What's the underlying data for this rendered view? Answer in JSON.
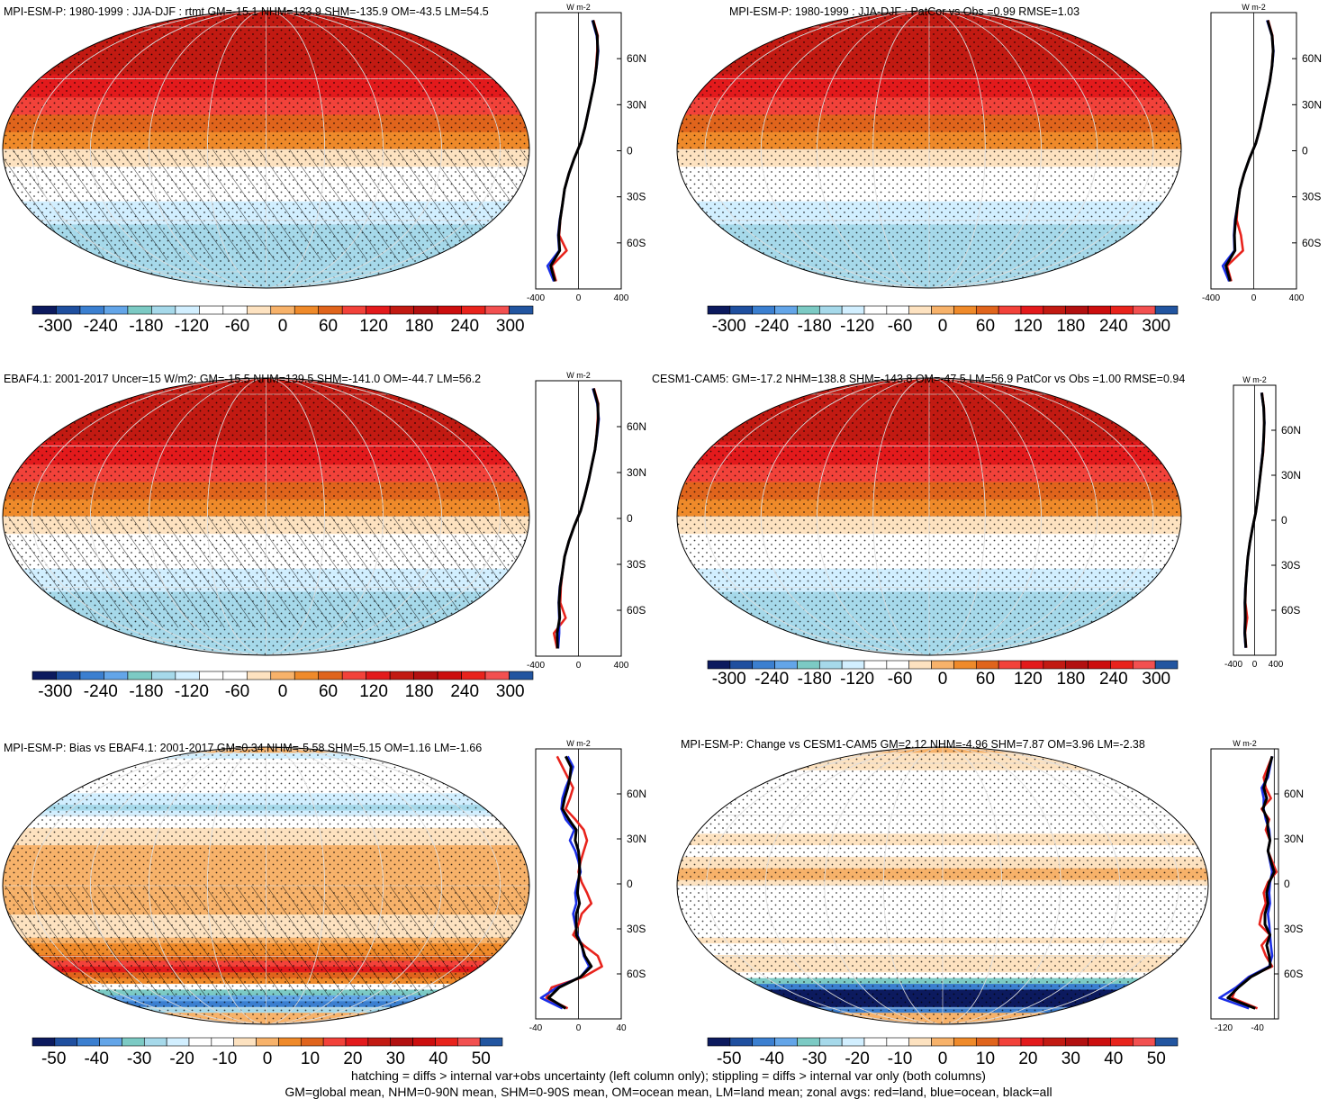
{
  "colors": {
    "abs_scale": [
      "#0c1a5e",
      "#1f4f9f",
      "#3b7fd0",
      "#63a5e8",
      "#7ccac4",
      "#a6d9ea",
      "#d2efff",
      "#ffffff",
      "#ffffff",
      "#fde2c0",
      "#f7b26a",
      "#ef8a2a",
      "#e0641c",
      "#f2423a",
      "#e31a1c",
      "#c21a12",
      "#b21010",
      "#cc0e0e",
      "#e8231c",
      "#f25050",
      "#2255a0"
    ],
    "diff_scale": [
      "#0c1a5e",
      "#1f4f9f",
      "#3b7fd0",
      "#63a5e8",
      "#7ccac4",
      "#a6d9ea",
      "#d2efff",
      "#ffffff",
      "#ffffff",
      "#fde2c0",
      "#f7b26a",
      "#ef8a2a",
      "#e0641c",
      "#f2423a",
      "#e31a1c",
      "#c21a12",
      "#b21010",
      "#cc0e0e",
      "#e8231c",
      "#f25050",
      "#2255a0"
    ],
    "land": "#e8231c",
    "ocean": "#1a2ee8",
    "all": "#000000"
  },
  "chart_data": [
    {
      "type": "heatmap",
      "title": "MPI-ESM-P: 1980-1999 : JJA-DJF : rtmt GM=-15.1 NHM=133.9 SHM=-135.9 OM=-43.5 LM=54.5",
      "field": "absolute",
      "hatching": true,
      "colorbar": {
        "ticks": [
          "-300",
          "-240",
          "-180",
          "-120",
          "-60",
          "0",
          "60",
          "120",
          "180",
          "240",
          "300"
        ],
        "range": [
          -330,
          330
        ]
      },
      "zonal": {
        "unit": "W m-2",
        "xlim": [
          -400,
          400
        ],
        "xticks": [
          "-400",
          "0",
          "400"
        ],
        "yticks": [
          "60N",
          "30N",
          "0",
          "30S",
          "60S"
        ],
        "lat": [
          85,
          75,
          65,
          55,
          45,
          35,
          25,
          15,
          5,
          -5,
          -15,
          -25,
          -35,
          -45,
          -55,
          -65,
          -75,
          -85
        ],
        "land": [
          140,
          180,
          175,
          165,
          150,
          120,
          90,
          60,
          20,
          -40,
          -90,
          -130,
          -150,
          -170,
          -180,
          -110,
          -250,
          -210
        ],
        "ocean": [
          130,
          170,
          185,
          170,
          150,
          120,
          90,
          60,
          20,
          -40,
          -90,
          -130,
          -150,
          -175,
          -190,
          -180,
          -290,
          -230
        ],
        "all": [
          135,
          175,
          180,
          168,
          150,
          120,
          90,
          60,
          20,
          -40,
          -90,
          -130,
          -150,
          -172,
          -185,
          -175,
          -260,
          -220
        ]
      }
    },
    {
      "type": "heatmap",
      "title": "MPI-ESM-P: 1980-1999 : JJA-DJF : PatCor vs Obs =0.99 RMSE=1.03",
      "field": "absolute",
      "hatching": false,
      "colorbar": {
        "ticks": [
          "-300",
          "-240",
          "-180",
          "-120",
          "-60",
          "0",
          "60",
          "120",
          "180",
          "240",
          "300"
        ],
        "range": [
          -330,
          330
        ]
      },
      "zonal": {
        "unit": "W m-2",
        "xlim": [
          -400,
          400
        ],
        "xticks": [
          "-400",
          "0",
          "400"
        ],
        "yticks": [
          "60N",
          "30N",
          "0",
          "30S",
          "60S"
        ],
        "lat": [
          85,
          75,
          65,
          55,
          45,
          35,
          25,
          15,
          5,
          -5,
          -15,
          -25,
          -35,
          -45,
          -55,
          -65,
          -75,
          -85
        ],
        "land": [
          135,
          175,
          180,
          170,
          150,
          120,
          90,
          60,
          20,
          -40,
          -90,
          -130,
          -150,
          -160,
          -120,
          -100,
          -250,
          -210
        ],
        "ocean": [
          125,
          170,
          185,
          172,
          150,
          120,
          90,
          60,
          20,
          -40,
          -90,
          -130,
          -150,
          -175,
          -185,
          -180,
          -290,
          -230
        ],
        "all": [
          130,
          172,
          182,
          171,
          150,
          120,
          90,
          60,
          20,
          -40,
          -90,
          -130,
          -150,
          -170,
          -180,
          -175,
          -260,
          -220
        ]
      }
    },
    {
      "type": "heatmap",
      "title": "EBAF4.1: 2001-2017 Uncer=15 W/m2: GM=-15.5 NHM=139.5 SHM=-141.0 OM=-44.7 LM=56.2",
      "field": "absolute",
      "hatching": true,
      "colorbar": {
        "ticks": [
          "-300",
          "-240",
          "-180",
          "-120",
          "-60",
          "0",
          "60",
          "120",
          "180",
          "240",
          "300"
        ],
        "range": [
          -330,
          330
        ]
      },
      "zonal": {
        "unit": "W m-2",
        "xlim": [
          -400,
          400
        ],
        "xticks": [
          "-400",
          "0",
          "400"
        ],
        "yticks": [
          "60N",
          "30N",
          "0",
          "30S",
          "60S"
        ],
        "lat": [
          85,
          75,
          65,
          55,
          45,
          35,
          25,
          15,
          5,
          -5,
          -15,
          -25,
          -35,
          -45,
          -55,
          -65,
          -75,
          -85
        ],
        "land": [
          145,
          185,
          180,
          170,
          155,
          125,
          95,
          60,
          20,
          -40,
          -90,
          -130,
          -150,
          -165,
          -170,
          -120,
          -230,
          -200
        ],
        "ocean": [
          135,
          175,
          190,
          175,
          155,
          125,
          95,
          60,
          20,
          -40,
          -90,
          -130,
          -150,
          -175,
          -185,
          -180,
          -180,
          -190
        ],
        "all": [
          140,
          180,
          185,
          172,
          155,
          125,
          95,
          60,
          20,
          -40,
          -90,
          -130,
          -150,
          -172,
          -182,
          -175,
          -200,
          -195
        ]
      }
    },
    {
      "type": "heatmap",
      "title": "CESM1-CAM5: GM=-17.2 NHM=138.8 SHM=-143.8 OM=-47.5 LM=56.9 PatCor vs Obs =1.00 RMSE=0.94",
      "field": "absolute",
      "hatching": false,
      "colorbar": {
        "ticks": [
          "-300",
          "-240",
          "-180",
          "-120",
          "-60",
          "0",
          "60",
          "120",
          "180",
          "240",
          "300"
        ],
        "range": [
          -330,
          330
        ]
      },
      "zonal": {
        "unit": "W m-2",
        "xlim": [
          -400,
          400
        ],
        "xticks": [
          "-400",
          "0",
          "400"
        ],
        "yticks": [
          "60N",
          "30N",
          "0",
          "30S",
          "60S"
        ],
        "lat": [
          85,
          75,
          65,
          55,
          45,
          35,
          25,
          15,
          5,
          -5,
          -15,
          -25,
          -35,
          -45,
          -55,
          -65,
          -75,
          -85
        ],
        "land": [
          140,
          175,
          180,
          175,
          160,
          125,
          90,
          60,
          20,
          -40,
          -90,
          -130,
          -155,
          -170,
          -175,
          -140,
          -180,
          -160
        ],
        "ocean": [
          130,
          170,
          185,
          170,
          150,
          120,
          90,
          60,
          20,
          -40,
          -90,
          -130,
          -150,
          -175,
          -185,
          -180,
          -190,
          -170
        ],
        "all": [
          135,
          172,
          182,
          172,
          155,
          122,
          90,
          60,
          20,
          -40,
          -90,
          -130,
          -152,
          -172,
          -182,
          -175,
          -185,
          -165
        ]
      }
    },
    {
      "type": "heatmap",
      "title": "MPI-ESM-P: Bias vs EBAF4.1: 2001-2017 GM=0.34 NHM=-5.58 SHM=5.15 OM=1.16 LM=-1.66",
      "field": "difference",
      "hatching": true,
      "colorbar": {
        "ticks": [
          "-50",
          "-40",
          "-30",
          "-20",
          "-10",
          "0",
          "10",
          "20",
          "30",
          "40",
          "50"
        ],
        "range": [
          -55,
          55
        ]
      },
      "zonal": {
        "unit": "W m-2",
        "xlim": [
          -40,
          40
        ],
        "xticks": [
          "-40",
          "0",
          "40"
        ],
        "yticks": [
          "60N",
          "30N",
          "0",
          "30S",
          "60S"
        ],
        "lat": [
          85,
          78,
          71,
          64,
          57,
          50,
          43,
          36,
          29,
          22,
          15,
          8,
          1,
          -6,
          -13,
          -20,
          -27,
          -34,
          -41,
          -48,
          -55,
          -62,
          -69,
          -76,
          -83
        ],
        "land": [
          -20,
          -15,
          -10,
          -5,
          -8,
          -12,
          -3,
          5,
          8,
          5,
          2,
          0,
          3,
          8,
          12,
          3,
          0,
          -5,
          5,
          18,
          22,
          5,
          -25,
          -30,
          -10
        ],
        "ocean": [
          -10,
          -5,
          -8,
          -12,
          -15,
          -16,
          -12,
          -4,
          -8,
          -3,
          0,
          2,
          -1,
          -3,
          -2,
          -5,
          -3,
          -1,
          3,
          5,
          10,
          2,
          -20,
          -35,
          -15
        ],
        "all": [
          -12,
          -7,
          -8,
          -10,
          -13,
          -15,
          -9,
          -2,
          -3,
          0,
          1,
          1,
          0,
          -1,
          1,
          -2,
          -2,
          -2,
          3,
          6,
          12,
          2,
          -18,
          -28,
          -12
        ]
      }
    },
    {
      "type": "heatmap",
      "title": "MPI-ESM-P: Change vs CESM1-CAM5 GM=2.12 NHM=-4.96 SHM=7.87 OM=3.96 LM=-2.38",
      "field": "difference",
      "hatching": false,
      "colorbar": {
        "ticks": [
          "-50",
          "-40",
          "-30",
          "-20",
          "-10",
          "0",
          "10",
          "20",
          "30",
          "40",
          "50"
        ],
        "range": [
          -55,
          55
        ]
      },
      "zonal": {
        "unit": "W m-2",
        "xlim": [
          -150,
          10
        ],
        "xticks": [
          "-120",
          "-40"
        ],
        "yticks": [
          "60N",
          "30N",
          "0",
          "30S",
          "60S"
        ],
        "lat": [
          85,
          78,
          71,
          64,
          57,
          50,
          43,
          36,
          29,
          22,
          15,
          8,
          1,
          -6,
          -13,
          -20,
          -27,
          -34,
          -41,
          -48,
          -55,
          -62,
          -69,
          -76,
          -83
        ],
        "land": [
          -5,
          -15,
          -25,
          -20,
          -8,
          -30,
          -12,
          -20,
          -10,
          -15,
          -5,
          5,
          -15,
          -25,
          -20,
          -30,
          -35,
          -10,
          -30,
          -20,
          -5,
          -60,
          -90,
          -100,
          -40
        ],
        "ocean": [
          -5,
          -10,
          -15,
          -30,
          -25,
          -25,
          -20,
          -12,
          -10,
          -15,
          -10,
          -5,
          -10,
          -12,
          -10,
          -15,
          -12,
          -10,
          -8,
          -5,
          -12,
          -60,
          -90,
          -130,
          -60
        ],
        "all": [
          -5,
          -12,
          -18,
          -25,
          -18,
          -27,
          -16,
          -15,
          -10,
          -15,
          -8,
          0,
          -12,
          -18,
          -15,
          -22,
          -22,
          -10,
          -18,
          -12,
          -9,
          -55,
          -85,
          -110,
          -45
        ]
      }
    }
  ],
  "footer": {
    "line1": "hatching = diffs > internal var+obs uncertainty (left column only); stippling = diffs > internal var only (both columns)",
    "line2": "GM=global mean, NHM=0-90N mean, SHM=0-90S mean, OM=ocean mean, LM=land mean; zonal avgs: red=land, blue=ocean, black=all"
  }
}
